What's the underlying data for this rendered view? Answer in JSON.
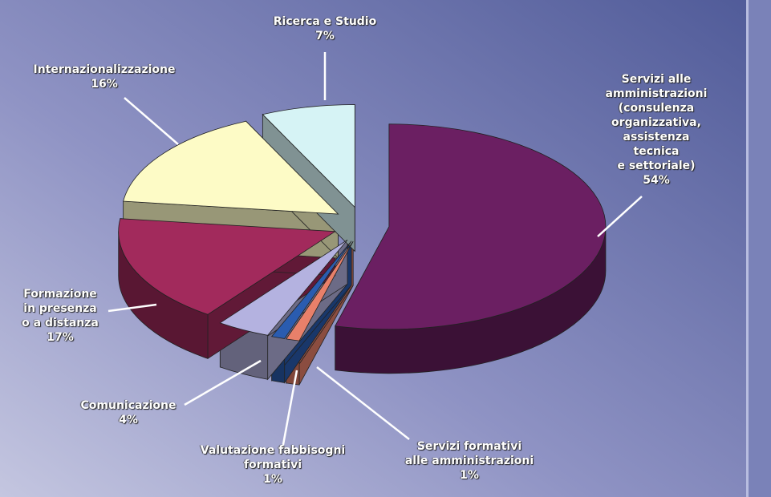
{
  "chart_data": {
    "type": "pie",
    "categories": [
      "Servizi alle\namministrazioni\n(consulenza organizzativa,\nassistenza tecnica\ne settoriale)",
      "Servizi formativi\nalle amministrazioni",
      "Valutazione fabbisogni\nformativi",
      "Comunicazione",
      "Formazione\nin presenza\no a distanza",
      "Internazionalizzazione",
      "Ricerca e Studio"
    ],
    "values": [
      54,
      1,
      1,
      4,
      17,
      16,
      7
    ],
    "value_labels": [
      "54%",
      "1%",
      "1%",
      "4%",
      "17%",
      "16%",
      "7%"
    ],
    "colors": [
      "#6b1f62",
      "#e8806a",
      "#2a5cb0",
      "#b4b2e0",
      "#a22a5c",
      "#fdfbc6",
      "#d6f3f5"
    ]
  }
}
